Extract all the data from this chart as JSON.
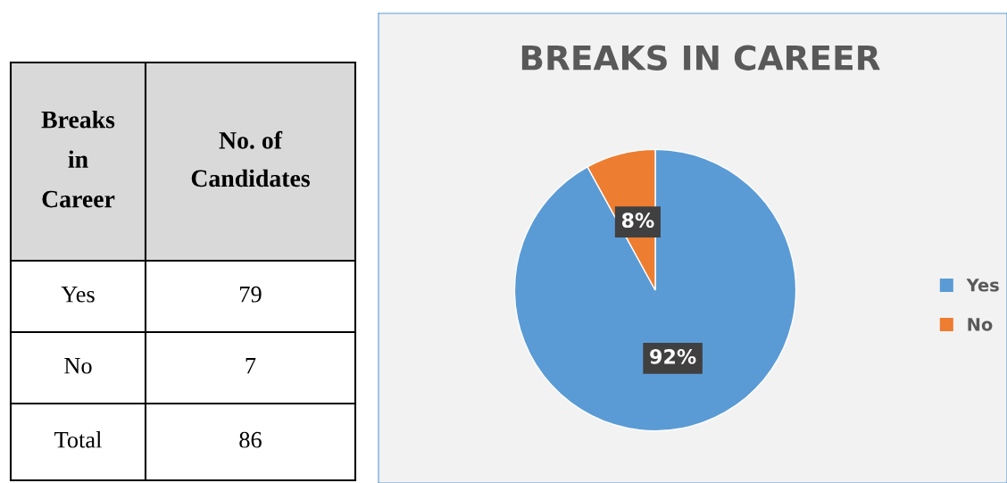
{
  "chart_data": [
    {
      "type": "other",
      "annotations": [
        "Breaks\nin\nCareer",
        "No. of\nCandidates",
        "Yes",
        "79",
        "No",
        "7",
        "Total",
        "86"
      ]
    },
    {
      "type": "pie",
      "title": "BREAKS IN CAREER",
      "categories": [
        "Yes",
        "No"
      ],
      "values": [
        92,
        8
      ],
      "colors": [
        "#5b9bd5",
        "#ed7d31"
      ],
      "value_labels": [
        "92%",
        "8%"
      ],
      "legend": "right"
    }
  ]
}
